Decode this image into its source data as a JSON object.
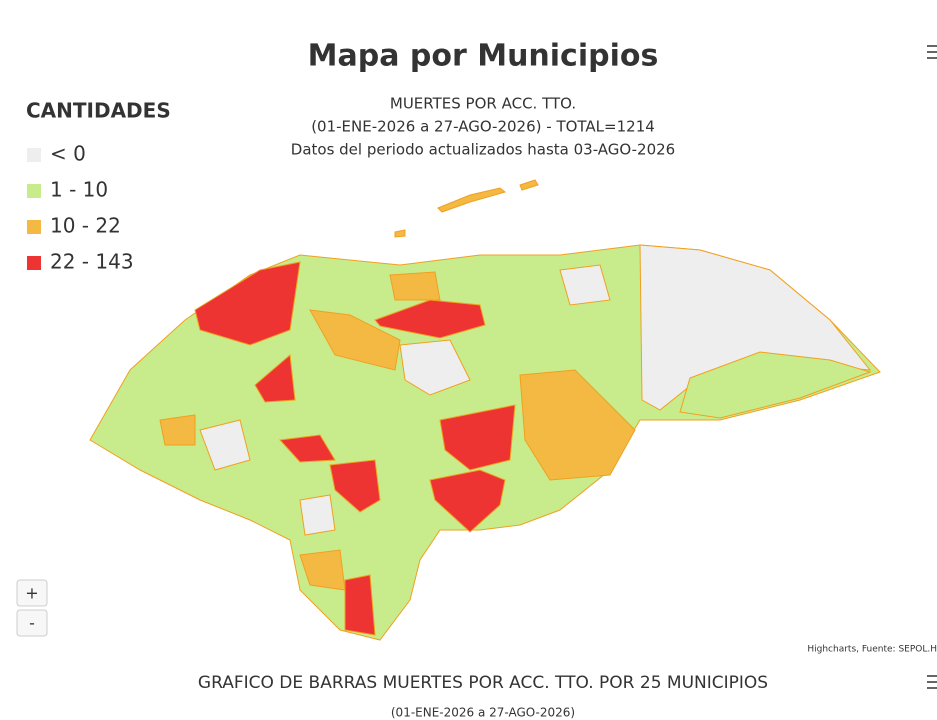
{
  "map": {
    "title": "Mapa por Municipios",
    "subtitle": [
      "MUERTES POR ACC. TTO.",
      "(01-ENE-2026 a 27-AGO-2026) - TOTAL=1214",
      "Datos del periodo actualizados hasta 03-AGO-2026"
    ],
    "legend": {
      "title": "CANTIDADES",
      "items": [
        {
          "label": "< 0",
          "color": "#eeeeee"
        },
        {
          "label": "1 - 10",
          "color": "#c8ec8c"
        },
        {
          "label": "10 - 22",
          "color": "#f4b942"
        },
        {
          "label": "22 - 143",
          "color": "#ee3333"
        }
      ]
    },
    "zoom": [
      "+",
      "-"
    ],
    "credits": "Highcharts, Fuente: SEPOL.H"
  },
  "bar_chart": {
    "title": "GRAFICO DE BARRAS MUERTES POR ACC. TTO. POR 25 MUNICIPIOS",
    "subtitle": "(01-ENE-2026 a 27-AGO-2026)"
  }
}
